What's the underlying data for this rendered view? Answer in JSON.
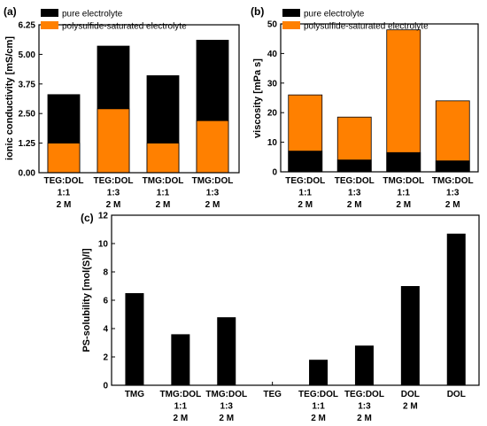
{
  "colors": {
    "pure": "#000000",
    "saturated": "#ff8000"
  },
  "chart_data": [
    {
      "panel": "(a)",
      "type": "bar",
      "stacked": "overlay",
      "categories": [
        [
          "TEG:DOL",
          "1:1",
          "2 M"
        ],
        [
          "TEG:DOL",
          "1:3",
          "2 M"
        ],
        [
          "TMG:DOL",
          "1:1",
          "2 M"
        ],
        [
          "TMG:DOL",
          "1:3",
          "2 M"
        ]
      ],
      "series": [
        {
          "name": "pure electrolyte",
          "values": [
            3.3,
            5.35,
            4.1,
            5.6
          ]
        },
        {
          "name": "polysulfide-saturated electrolyte",
          "values": [
            1.25,
            2.7,
            1.25,
            2.2
          ]
        }
      ],
      "ylabel": "ionic conductivity [mS/cm]",
      "yticks": [
        "0.00",
        "1.25",
        "2.50",
        "3.75",
        "5.00",
        "6.25"
      ],
      "ylim": [
        0,
        6.25
      ],
      "legend": "top-left"
    },
    {
      "panel": "(b)",
      "type": "bar",
      "stacked": "overlay",
      "categories": [
        [
          "TEG:DOL",
          "1:1",
          "2 M"
        ],
        [
          "TEG:DOL",
          "1:3",
          "2 M"
        ],
        [
          "TMG:DOL",
          "1:1",
          "2 M"
        ],
        [
          "TMG:DOL",
          "1:3",
          "2 M"
        ]
      ],
      "series": [
        {
          "name": "pure electrolyte",
          "values": [
            7,
            4,
            6.5,
            3.7
          ]
        },
        {
          "name": "polysulfide-saturated electrolyte",
          "values": [
            26,
            18.5,
            48,
            24
          ]
        }
      ],
      "ylabel": "viscosity [mPa s]",
      "yticks": [
        "0",
        "10",
        "20",
        "30",
        "40",
        "50"
      ],
      "ylim": [
        0,
        50
      ],
      "legend": "top-left"
    },
    {
      "panel": "(c)",
      "type": "bar",
      "categories": [
        [
          "TMG"
        ],
        [
          "TMG:DOL",
          "1:1",
          "2 M"
        ],
        [
          "TMG:DOL",
          "1:3",
          "2 M"
        ],
        [
          "TEG"
        ],
        [
          "TEG:DOL",
          "1:1",
          "2 M"
        ],
        [
          "TEG:DOL",
          "1:3",
          "2 M"
        ],
        [
          "DOL",
          "2 M"
        ],
        [
          "DOL"
        ]
      ],
      "values": [
        6.5,
        3.6,
        4.8,
        0,
        1.8,
        2.8,
        7.0,
        10.7
      ],
      "ylabel": "PS-solubility [mol(S)/l]",
      "yticks": [
        "0",
        "2",
        "4",
        "6",
        "8",
        "10",
        "12"
      ],
      "ylim": [
        0,
        12
      ]
    }
  ]
}
